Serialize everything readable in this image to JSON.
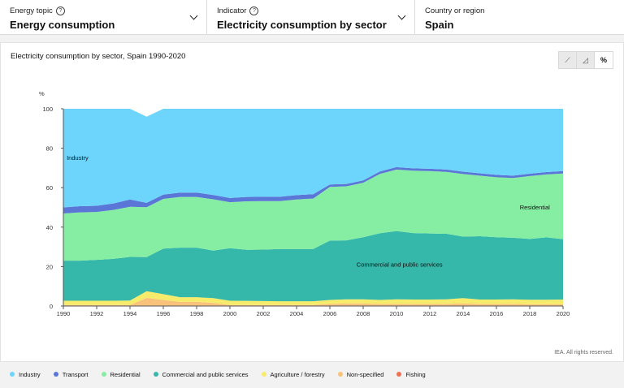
{
  "selectors": [
    {
      "label": "Energy topic",
      "value": "Energy consumption",
      "has_help": true,
      "has_dropdown": true
    },
    {
      "label": "Indicator",
      "value": "Electricity consumption by sector",
      "has_help": true,
      "has_dropdown": true
    },
    {
      "label": "Country or region",
      "value": "Spain",
      "has_help": false,
      "has_dropdown": false
    }
  ],
  "help_glyph": "?",
  "view_modes": [
    {
      "icon": "line-chart-icon",
      "glyph": "⟋"
    },
    {
      "icon": "area-chart-icon",
      "glyph": "◿"
    },
    {
      "icon": "percent-icon",
      "glyph": "%",
      "active": true
    }
  ],
  "credit": "IEA. All rights reserved.",
  "colors": {
    "Industry": "#6dd5fc",
    "Transport": "#5a76d6",
    "Residential": "#86eea2",
    "Commercial and public services": "#35b8aa",
    "Agriculture / forestry": "#f6eb6a",
    "Non-specified": "#f8c27a",
    "Fishing": "#ef7052"
  },
  "chart_data": {
    "type": "area",
    "stacked": true,
    "title": "Electricity consumption by sector, Spain 1990-2020",
    "ylabel": "%",
    "ylim": [
      0,
      100
    ],
    "yticks": [
      0,
      20,
      40,
      60,
      80,
      100
    ],
    "xticks": [
      1990,
      1992,
      1994,
      1996,
      1998,
      2000,
      2002,
      2004,
      2006,
      2008,
      2010,
      2012,
      2014,
      2016,
      2018,
      2020
    ],
    "grid": false,
    "legend_position": "bottom",
    "x": [
      1990,
      1991,
      1992,
      1993,
      1994,
      1995,
      1996,
      1997,
      1998,
      1999,
      2000,
      2001,
      2002,
      2003,
      2004,
      2005,
      2006,
      2007,
      2008,
      2009,
      2010,
      2011,
      2012,
      2013,
      2014,
      2015,
      2016,
      2017,
      2018,
      2019,
      2020
    ],
    "series": [
      {
        "name": "Fishing",
        "values": [
          0.1,
          0.1,
          0.1,
          0.1,
          0.1,
          0.1,
          0.1,
          0.1,
          0.1,
          0.1,
          0.1,
          0.1,
          0.1,
          0.1,
          0.1,
          0.1,
          0.1,
          0.1,
          0.1,
          0.1,
          0.1,
          0.1,
          0.1,
          0.1,
          0.1,
          0.1,
          0.1,
          0.1,
          0.1,
          0.1,
          0.1
        ]
      },
      {
        "name": "Non-specified",
        "values": [
          0.4,
          0.4,
          0.4,
          0.4,
          0.4,
          4,
          3,
          2,
          2,
          1.5,
          0.4,
          0.4,
          0.4,
          0.4,
          0.4,
          0.4,
          1,
          1.2,
          1.2,
          1,
          1,
          1,
          1,
          1,
          1.3,
          1,
          1,
          1,
          0.8,
          0.8,
          0.8
        ]
      },
      {
        "name": "Agriculture / forestry",
        "values": [
          2.2,
          2.2,
          2.2,
          2.2,
          2.3,
          3.4,
          2.9,
          2.4,
          2.4,
          2.4,
          2.2,
          2.1,
          2.0,
          1.9,
          1.9,
          1.9,
          2.0,
          2.1,
          2.1,
          2.0,
          2.3,
          2.2,
          2.2,
          2.3,
          2.6,
          2.2,
          2.2,
          2.3,
          2.3,
          2.3,
          2.4
        ]
      },
      {
        "name": "Commercial and public services",
        "values": [
          20.3,
          20.3,
          20.7,
          21.2,
          22.1,
          17.3,
          23.1,
          25.1,
          25.1,
          24.1,
          26.6,
          25.9,
          26.1,
          26.5,
          26.5,
          26.5,
          30.1,
          29.9,
          31.5,
          33.8,
          34.6,
          33.7,
          33.5,
          33.2,
          31.2,
          32.1,
          31.6,
          31.2,
          30.8,
          31.6,
          30.6
        ]
      },
      {
        "name": "Residential",
        "values": [
          23.9,
          24.5,
          24.3,
          24.8,
          25.4,
          25.3,
          25.2,
          25.7,
          25.7,
          26,
          23.3,
          24.6,
          24.6,
          24.3,
          25.1,
          25.6,
          27.2,
          27.4,
          27.6,
          30.1,
          31.2,
          31.6,
          31.6,
          31.4,
          31.7,
          30.7,
          30.4,
          30.3,
          31.9,
          31.9,
          33.3
        ]
      },
      {
        "name": "Transport",
        "values": [
          3.1,
          3.1,
          3.1,
          3.3,
          3.7,
          2.2,
          2.2,
          2.2,
          2.2,
          2.2,
          2.2,
          2.2,
          2.2,
          2.2,
          2.2,
          2.2,
          1.2,
          1.2,
          1.2,
          1.2,
          1.2,
          1.2,
          1.2,
          1.2,
          1.2,
          1.2,
          1.2,
          1.2,
          1.2,
          1.2,
          1.2
        ]
      },
      {
        "name": "Industry",
        "values": [
          50,
          49.4,
          49.2,
          48,
          46,
          43.7,
          43.5,
          42.5,
          42.5,
          43.7,
          45.2,
          44.7,
          44.6,
          44.6,
          43.8,
          43.3,
          38.4,
          38.1,
          36.3,
          31.8,
          29.6,
          30.2,
          30.4,
          30.8,
          31.9,
          32.7,
          33.5,
          33.9,
          32.9,
          32.1,
          31.6
        ]
      }
    ],
    "annotations": [
      {
        "text": "Industry",
        "x": 1990.2,
        "y": 74
      },
      {
        "text": "Residential",
        "x": 2017.4,
        "y": 49
      },
      {
        "text": "Commercial and public services",
        "x": 2007.6,
        "y": 20
      }
    ]
  },
  "legend": [
    {
      "name": "Industry"
    },
    {
      "name": "Transport"
    },
    {
      "name": "Residential"
    },
    {
      "name": "Commercial and public services"
    },
    {
      "name": "Agriculture / forestry"
    },
    {
      "name": "Non-specified"
    },
    {
      "name": "Fishing"
    }
  ]
}
